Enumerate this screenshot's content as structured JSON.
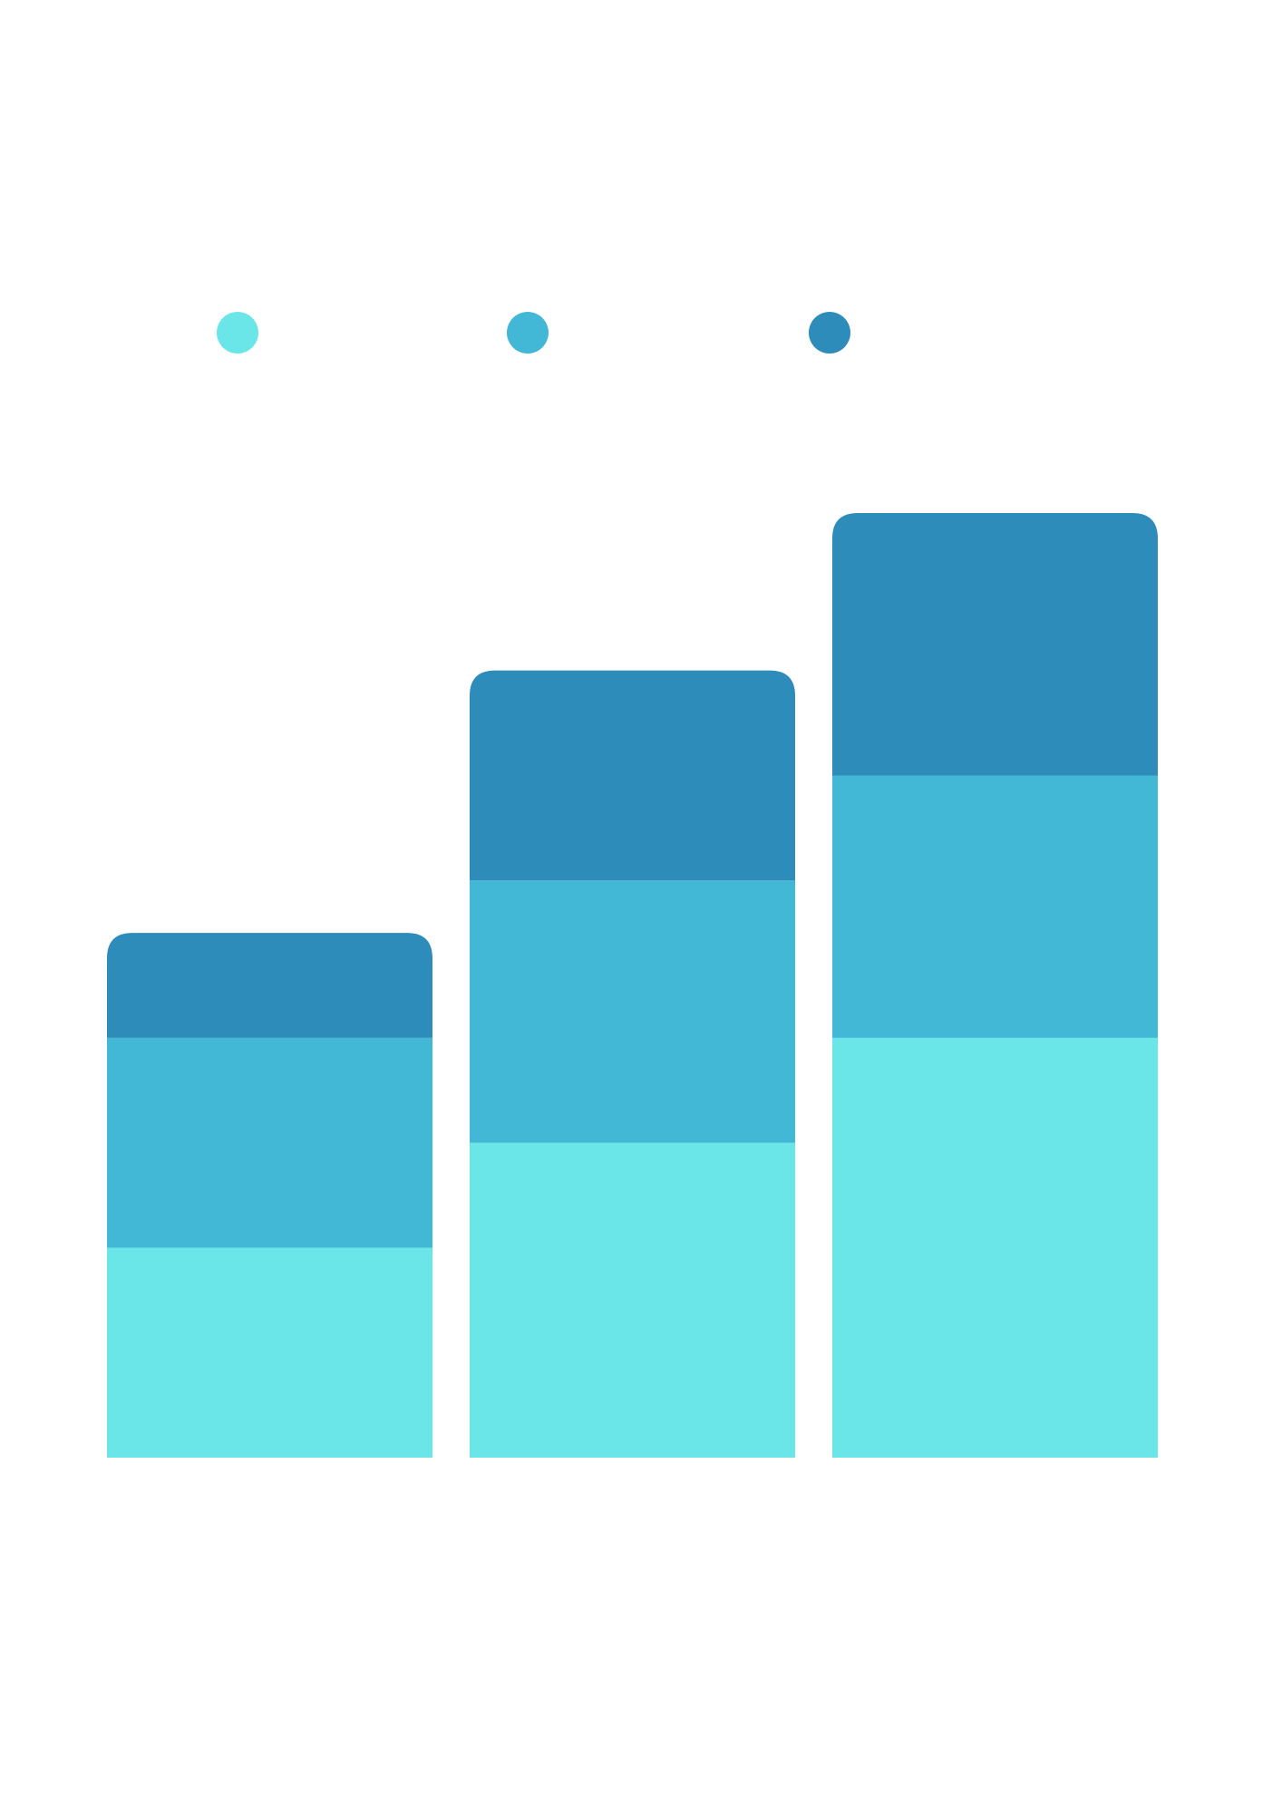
{
  "chart_data": {
    "type": "bar",
    "stacked": true,
    "categories": [
      "",
      "",
      ""
    ],
    "series": [
      {
        "color": "#6ae5e8",
        "values": [
          2,
          3,
          4
        ]
      },
      {
        "color": "#43b7d6",
        "values": [
          2,
          2.5,
          2.5
        ]
      },
      {
        "color": "#2e8cba",
        "values": [
          1,
          2,
          2.5
        ]
      }
    ],
    "ylim": [
      0,
      9
    ],
    "legend": "top",
    "grid": false,
    "title": "",
    "xlabel": "",
    "ylabel": ""
  }
}
